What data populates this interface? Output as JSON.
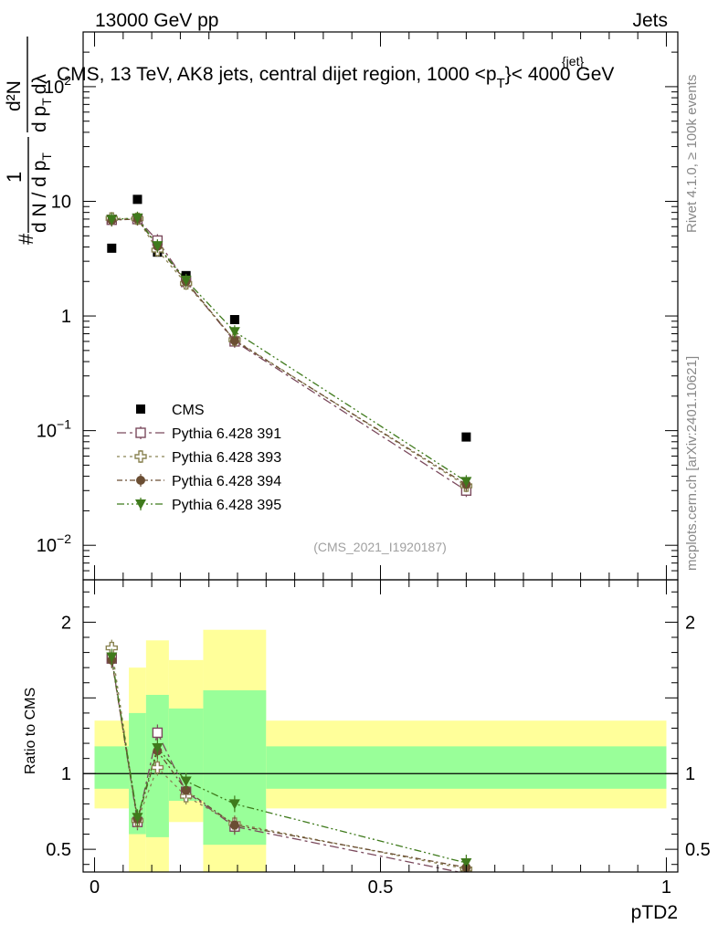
{
  "header": {
    "energy_label": "13000 GeV pp",
    "process_label": "Jets",
    "title_main": "CMS, 13 TeV, AK8 jets, central dijet region, 1000 <p",
    "title_sup": "{jet}",
    "title_sub": "T",
    "title_end": "}< 4000 GeV",
    "analysis_id": "(CMS_2021_I1920187)",
    "side_rivet": "Rivet 4.1.0, ≥ 100k events",
    "side_mcplots": "mcplots.cern.ch [arXiv:2401.10621]"
  },
  "colors": {
    "cms": "#000000",
    "p391": "#7b4a5d",
    "p393": "#8a8453",
    "p394": "#6b4e33",
    "p395": "#3f7a1c",
    "band_outer": "#ffff9a",
    "band_inner": "#99ff99"
  },
  "chart_data": [
    {
      "type": "scatter",
      "panel": "main",
      "ylabel_num_hash": "#",
      "ylabel_frac_num": "1",
      "ylabel_frac_den": "d N / d p",
      "ylabel_frac_den_sub": "T",
      "ylabel_num2": "d²N",
      "ylabel_den2": "d p",
      "ylabel_den2_sub": "T",
      "ylabel_den2_tail": "dλ",
      "yscale": "log",
      "ylim": [
        0.005,
        300
      ],
      "xlim": [
        -0.02,
        1.02
      ],
      "y_ticks": [
        {
          "value": 0.01,
          "label_base": "10",
          "label_exp": "−2"
        },
        {
          "value": 0.1,
          "label_base": "10",
          "label_exp": "−1"
        },
        {
          "value": 1,
          "label_base": "1",
          "label_exp": ""
        },
        {
          "value": 10,
          "label_base": "10",
          "label_exp": ""
        },
        {
          "value": 100,
          "label_base": "10",
          "label_exp": "2"
        }
      ],
      "x": [
        0.03,
        0.075,
        0.11,
        0.16,
        0.245,
        0.65
      ],
      "series": [
        {
          "name": "CMS",
          "marker": "square-filled",
          "values": [
            3.9,
            10.4,
            3.6,
            2.25,
            0.93,
            0.088
          ]
        },
        {
          "name": "Pythia 6.428 391",
          "marker": "square-open",
          "values": [
            6.9,
            7.0,
            4.55,
            1.98,
            0.6,
            0.03
          ]
        },
        {
          "name": "Pythia 6.428 393",
          "marker": "cross-open",
          "values": [
            7.1,
            7.05,
            3.75,
            1.92,
            0.62,
            0.033
          ]
        },
        {
          "name": "Pythia 6.428 394",
          "marker": "circle-filled",
          "values": [
            6.85,
            7.0,
            4.05,
            2.0,
            0.61,
            0.034
          ]
        },
        {
          "name": "Pythia 6.428 395",
          "marker": "triangle-down-filled",
          "values": [
            6.95,
            7.15,
            4.1,
            2.05,
            0.73,
            0.036
          ]
        }
      ]
    },
    {
      "type": "scatter",
      "panel": "ratio",
      "ylabel": "Ratio to CMS",
      "xlabel": "pTD2",
      "ylim": [
        0.35,
        2.28
      ],
      "xlim": [
        -0.02,
        1.02
      ],
      "x_ticks": [
        {
          "value": 0,
          "label": "0"
        },
        {
          "value": 0.5,
          "label": "0.5"
        },
        {
          "value": 1,
          "label": "1"
        }
      ],
      "y_ticks": [
        {
          "value": 0.5,
          "label": "0.5"
        },
        {
          "value": 1,
          "label": "1"
        },
        {
          "value": 2,
          "label": "2"
        }
      ],
      "bins": [
        {
          "lo": 0.0,
          "hi": 0.06,
          "outer": [
            0.77,
            1.35
          ],
          "inner": [
            0.9,
            1.18
          ]
        },
        {
          "lo": 0.06,
          "hi": 0.09,
          "outer": [
            0.3,
            1.7
          ],
          "inner": [
            0.6,
            1.4
          ]
        },
        {
          "lo": 0.09,
          "hi": 0.13,
          "outer": [
            0.3,
            1.88
          ],
          "inner": [
            0.58,
            1.52
          ]
        },
        {
          "lo": 0.13,
          "hi": 0.19,
          "outer": [
            0.68,
            1.75
          ],
          "inner": [
            0.82,
            1.43
          ]
        },
        {
          "lo": 0.19,
          "hi": 0.3,
          "outer": [
            0.3,
            1.95
          ],
          "inner": [
            0.53,
            1.55
          ]
        },
        {
          "lo": 0.3,
          "hi": 1.0,
          "outer": [
            0.77,
            1.35
          ],
          "inner": [
            0.9,
            1.18
          ]
        }
      ],
      "x": [
        0.03,
        0.075,
        0.11,
        0.16,
        0.245,
        0.65
      ],
      "series": [
        {
          "name": "Pythia 6.428 391",
          "values": [
            1.76,
            0.68,
            1.27,
            0.88,
            0.65,
            0.34
          ]
        },
        {
          "name": "Pythia 6.428 393",
          "values": [
            1.83,
            0.69,
            1.04,
            0.85,
            0.67,
            0.37
          ]
        },
        {
          "name": "Pythia 6.428 394",
          "values": [
            1.75,
            0.7,
            1.15,
            0.89,
            0.66,
            0.38
          ]
        },
        {
          "name": "Pythia 6.428 395",
          "values": [
            1.77,
            0.71,
            1.17,
            0.95,
            0.8,
            0.41
          ]
        }
      ]
    }
  ]
}
